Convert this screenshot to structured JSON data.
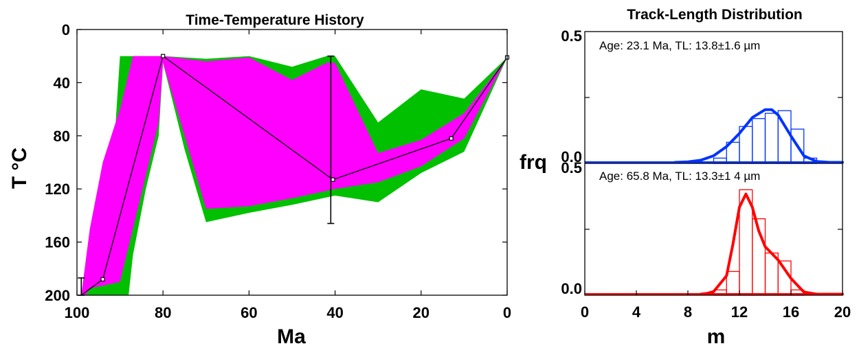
{
  "colors": {
    "good_envelope": "#00c000",
    "acceptable_envelope": "#ff00ff",
    "path": "#000000",
    "histogram_upper": "#0033ff",
    "histogram_lower": "#ff0000"
  },
  "chart_data": [
    {
      "type": "area",
      "title": "Time-Temperature History",
      "xlabel": "Ma",
      "ylabel": "T °C",
      "xlim": [
        100,
        0
      ],
      "ylim": [
        200,
        0
      ],
      "x_reversed": true,
      "y_reversed": true,
      "xticks": [
        100,
        80,
        60,
        40,
        20,
        0
      ],
      "yticks": [
        0,
        40,
        80,
        120,
        160,
        200
      ],
      "x_tick_labels": [
        "100",
        "80",
        "60",
        "40",
        "20",
        "0"
      ],
      "y_tick_labels": [
        "0",
        "40",
        "80",
        "120",
        "160",
        "200"
      ],
      "grid": false,
      "green_envelope": {
        "upper": [
          [
            99,
            200
          ],
          [
            97,
            150
          ],
          [
            94,
            100
          ],
          [
            91,
            70
          ],
          [
            90,
            20
          ],
          [
            80,
            20
          ],
          [
            70,
            22
          ],
          [
            60,
            20
          ],
          [
            50,
            28
          ],
          [
            42,
            20
          ],
          [
            40,
            20
          ],
          [
            30,
            70
          ],
          [
            20,
            45
          ],
          [
            10,
            52
          ],
          [
            0,
            21
          ]
        ],
        "lower": [
          [
            99,
            200
          ],
          [
            88,
            200
          ],
          [
            87,
            170
          ],
          [
            84,
            120
          ],
          [
            81,
            80
          ],
          [
            80,
            25
          ],
          [
            75,
            90
          ],
          [
            70,
            145
          ],
          [
            60,
            138
          ],
          [
            50,
            132
          ],
          [
            40,
            125
          ],
          [
            30,
            130
          ],
          [
            20,
            108
          ],
          [
            10,
            92
          ],
          [
            0,
            21
          ]
        ]
      },
      "magenta_envelope": {
        "upper": [
          [
            99,
            200
          ],
          [
            97,
            150
          ],
          [
            94,
            100
          ],
          [
            90,
            60
          ],
          [
            87,
            20
          ],
          [
            80,
            20
          ],
          [
            70,
            24
          ],
          [
            60,
            21
          ],
          [
            50,
            38
          ],
          [
            42,
            25
          ],
          [
            40,
            25
          ],
          [
            30,
            93
          ],
          [
            20,
            83
          ],
          [
            10,
            63
          ],
          [
            0,
            21
          ]
        ],
        "lower": [
          [
            99,
            200
          ],
          [
            98,
            200
          ],
          [
            97,
            195
          ],
          [
            90,
            190
          ],
          [
            87,
            150
          ],
          [
            84,
            110
          ],
          [
            81,
            70
          ],
          [
            80,
            25
          ],
          [
            75,
            80
          ],
          [
            70,
            135
          ],
          [
            60,
            133
          ],
          [
            50,
            127
          ],
          [
            40,
            120
          ],
          [
            30,
            115
          ],
          [
            20,
            103
          ],
          [
            10,
            82
          ],
          [
            0,
            21
          ]
        ]
      },
      "path": [
        [
          99,
          200
        ],
        [
          94,
          188
        ],
        [
          80,
          20
        ],
        [
          40.5,
          113
        ],
        [
          13,
          82
        ],
        [
          0,
          21
        ]
      ],
      "path_nodes": [
        [
          94,
          188
        ],
        [
          80,
          20
        ],
        [
          40.5,
          113
        ],
        [
          13,
          82
        ],
        [
          0,
          21
        ]
      ],
      "error_bars": [
        {
          "x": 41,
          "low": 20,
          "high": 146
        },
        {
          "x": 99,
          "low": 187,
          "high": 200
        }
      ]
    },
    {
      "type": "bar",
      "title": "Track-Length Distribution",
      "xlabel": "m",
      "ylabel": "frq",
      "xlim": [
        0,
        20
      ],
      "xticks": [
        0,
        4,
        8,
        12,
        16,
        20
      ],
      "x_tick_labels": [
        "0",
        "4",
        "8",
        "12",
        "16",
        "20"
      ],
      "panels": [
        {
          "label": "Age: 23.1 Ma, TL: 13.8±1.6 µm",
          "ylim": [
            0,
            0.5
          ],
          "y_tick_labels": [
            "0.0",
            "0.5"
          ],
          "bins": [
            10,
            11,
            12,
            13,
            14,
            15,
            16,
            17
          ],
          "bin_width": 1,
          "counts": [
            0.02,
            0.08,
            0.14,
            0.17,
            0.19,
            0.2,
            0.13,
            0.02
          ],
          "fit_curve": [
            [
              7,
              0
            ],
            [
              8,
              0.002
            ],
            [
              9,
              0.008
            ],
            [
              10,
              0.025
            ],
            [
              11,
              0.06
            ],
            [
              12,
              0.11
            ],
            [
              13,
              0.17
            ],
            [
              14,
              0.2
            ],
            [
              14.5,
              0.2
            ],
            [
              15,
              0.18
            ],
            [
              16,
              0.1
            ],
            [
              17,
              0.025
            ],
            [
              18,
              0.003
            ],
            [
              19,
              0
            ],
            [
              20,
              0
            ]
          ],
          "histogram_color": "#0033ff"
        },
        {
          "label": "Age: 65.8 Ma, TL: 13.3±1 4 µm",
          "ylim": [
            0,
            0.5
          ],
          "y_tick_labels": [
            "0.0",
            "0.5"
          ],
          "bins": [
            10,
            11,
            12,
            13,
            14,
            15,
            16
          ],
          "bin_width": 1,
          "counts": [
            0.02,
            0.09,
            0.4,
            0.29,
            0.16,
            0.13,
            0.02
          ],
          "fit_curve": [
            [
              9,
              0
            ],
            [
              9.5,
              0.003
            ],
            [
              10,
              0.01
            ],
            [
              11,
              0.07
            ],
            [
              11.5,
              0.19
            ],
            [
              12,
              0.33
            ],
            [
              12.5,
              0.38
            ],
            [
              13,
              0.33
            ],
            [
              13.5,
              0.24
            ],
            [
              14,
              0.18
            ],
            [
              15,
              0.13
            ],
            [
              16,
              0.06
            ],
            [
              17,
              0.008
            ],
            [
              18,
              0
            ],
            [
              20,
              0
            ]
          ],
          "histogram_color": "#ff0000"
        }
      ]
    }
  ]
}
